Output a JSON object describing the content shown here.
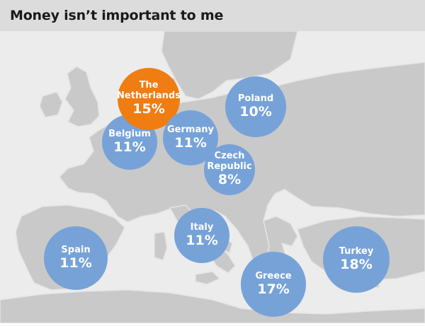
{
  "header": {
    "title": "Money isn’t important to me"
  },
  "colors": {
    "bubble": "#76a2d8",
    "highlight": "#ef7d12",
    "sea": "#ececec",
    "land": "#c9c9c9",
    "border": "#e6e6e6"
  },
  "countries": [
    {
      "name": "Spain",
      "value": "11%"
    },
    {
      "name": "Belgium",
      "value": "11%"
    },
    {
      "name": "The\nNetherlands",
      "value": "15%",
      "highlight": true
    },
    {
      "name": "Germany",
      "value": "11%"
    },
    {
      "name": "Poland",
      "value": "10%"
    },
    {
      "name": "Czech\nRepublic",
      "value": "8%"
    },
    {
      "name": "Italy",
      "value": "11%"
    },
    {
      "name": "Greece",
      "value": "17%"
    },
    {
      "name": "Turkey",
      "value": "18%"
    }
  ]
}
